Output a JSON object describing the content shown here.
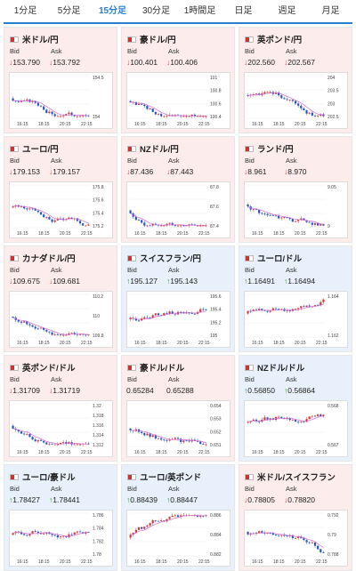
{
  "tabs": [
    "1分足",
    "5分足",
    "15分足",
    "30分足",
    "1時間足",
    "日足",
    "週足",
    "月足"
  ],
  "active_tab": 2,
  "labels": {
    "bid": "Bid",
    "ask": "Ask"
  },
  "xticks": [
    "16:15",
    "18:15",
    "20:15",
    "22:15"
  ],
  "colors": {
    "down_bg": "#fdecec",
    "up_bg": "#e8f1fb",
    "down_arrow": "#d23a3a",
    "up_arrow": "#2a9a2a",
    "candle_up": "#d23a3a",
    "candle_down": "#2a55c8",
    "ma": "#d36bd3"
  },
  "cards": [
    {
      "name": "米ドル/円",
      "dir": "down",
      "bid": "↓153.790",
      "ask": "↓153.792",
      "yticks": [
        "154.5",
        "154"
      ],
      "flag": "us-jp-flag"
    },
    {
      "name": "豪ドル/円",
      "dir": "down",
      "bid": "↓100.401",
      "ask": "↓100.406",
      "yticks": [
        "101",
        "100.8",
        "100.6",
        "100.4"
      ],
      "flag": "au-jp-flag"
    },
    {
      "name": "英ポンド/円",
      "dir": "down",
      "bid": "↓202.560",
      "ask": "↓202.567",
      "yticks": [
        "204",
        "203.5",
        "203",
        "202.5"
      ],
      "flag": "gb-jp-flag"
    },
    {
      "name": "ユーロ/円",
      "dir": "down",
      "bid": "↓179.153",
      "ask": "↓179.157",
      "yticks": [
        "175.8",
        "175.6",
        "175.4",
        "175.2"
      ],
      "flag": "eu-jp-flag"
    },
    {
      "name": "NZドル/円",
      "dir": "down",
      "bid": "↓87.436",
      "ask": "↓87.443",
      "yticks": [
        "87.8",
        "87.6",
        "87.4"
      ],
      "flag": "nz-jp-flag"
    },
    {
      "name": "ランド/円",
      "dir": "down",
      "bid": "↓8.961",
      "ask": "↓8.970",
      "yticks": [
        "9.05",
        "9"
      ],
      "flag": "za-jp-flag"
    },
    {
      "name": "カナダドル/円",
      "dir": "down",
      "bid": "↓109.675",
      "ask": "↓109.681",
      "yticks": [
        "110.2",
        "110",
        "109.8"
      ],
      "flag": "ca-jp-flag"
    },
    {
      "name": "スイスフラン/円",
      "dir": "up",
      "bid": "↑195.127",
      "ask": "↑195.143",
      "yticks": [
        "195.6",
        "195.4",
        "195.2",
        "195"
      ],
      "flag": "ch-jp-flag"
    },
    {
      "name": "ユーロ/ドル",
      "dir": "up",
      "bid": "↑1.16491",
      "ask": "↑1.16494",
      "yticks": [
        "1.164",
        "1.162"
      ],
      "flag": "eu-us-flag"
    },
    {
      "name": "英ポンド/ドル",
      "dir": "down",
      "bid": "↓1.31709",
      "ask": "↓1.31719",
      "yticks": [
        "1.32",
        "1.318",
        "1.316",
        "1.314",
        "1.312"
      ],
      "flag": "gb-us-flag"
    },
    {
      "name": "豪ドル/ドル",
      "dir": "down",
      "bid": "0.65284",
      "ask": "0.65288",
      "yticks": [
        "0.654",
        "0.653",
        "0.652",
        "0.651"
      ],
      "flag": "au-us-flag"
    },
    {
      "name": "NZドル/ドル",
      "dir": "up",
      "bid": "↑0.56850",
      "ask": "↑0.56864",
      "yticks": [
        "0.568",
        "0.567"
      ],
      "flag": "nz-us-flag"
    },
    {
      "name": "ユーロ/豪ドル",
      "dir": "up",
      "bid": "↑1.78427",
      "ask": "↑1.78441",
      "yticks": [
        "1.786",
        "1.784",
        "1.782",
        "1.78"
      ],
      "flag": "eu-au-flag"
    },
    {
      "name": "ユーロ/英ポンド",
      "dir": "up",
      "bid": "↑0.88439",
      "ask": "↑0.88447",
      "yticks": [
        "0.886",
        "0.884",
        "0.882"
      ],
      "flag": "eu-gb-flag"
    },
    {
      "name": "米ドル/スイスフラン",
      "dir": "down",
      "bid": "↓0.78805",
      "ask": "↓0.78820",
      "yticks": [
        "0.792",
        "0.79",
        "0.788"
      ],
      "flag": "us-ch-flag"
    }
  ]
}
